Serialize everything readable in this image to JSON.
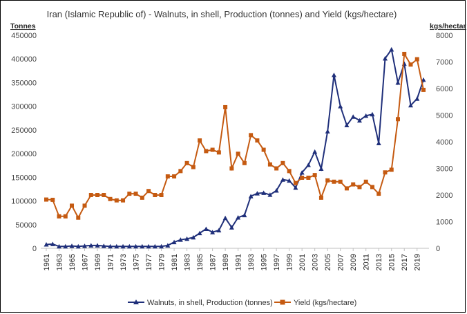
{
  "chart_data": {
    "type": "line",
    "title": "Iran (Islamic Republic of) -  Walnuts, in shell, Production (tonnes) and Yield (kgs/hectare)",
    "ylabel_left": "Tonnes",
    "ylabel_right": "kgs/hectare",
    "ylim_left": [
      0,
      450000
    ],
    "ylim_right": [
      0,
      8000
    ],
    "yticks_left": [
      "0",
      "50000",
      "100000",
      "150000",
      "200000",
      "250000",
      "300000",
      "350000",
      "400000",
      "450000"
    ],
    "yticks_right": [
      "0",
      "1000",
      "2000",
      "3000",
      "4000",
      "5000",
      "6000",
      "7000",
      "8000"
    ],
    "xlim": [
      1961,
      2020
    ],
    "xticks": [
      "1961",
      "1963",
      "1965",
      "1967",
      "1969",
      "1971",
      "1973",
      "1975",
      "1977",
      "1979",
      "1981",
      "1983",
      "1985",
      "1987",
      "1989",
      "1991",
      "1993",
      "1995",
      "1997",
      "1999",
      "2001",
      "2003",
      "2005",
      "2007",
      "2009",
      "2011",
      "2013",
      "2015",
      "2017",
      "2019"
    ],
    "legend_position": "bottom",
    "grid": false,
    "series": [
      {
        "name": "Walnuts, in shell, Production (tonnes)",
        "axis": "left",
        "color": "#1f2f7a",
        "marker": "triangle",
        "x": [
          1961,
          1962,
          1963,
          1964,
          1965,
          1966,
          1967,
          1968,
          1969,
          1970,
          1971,
          1972,
          1973,
          1974,
          1975,
          1976,
          1977,
          1978,
          1979,
          1980,
          1981,
          1982,
          1983,
          1984,
          1985,
          1986,
          1987,
          1988,
          1989,
          1990,
          1991,
          1992,
          1993,
          1994,
          1995,
          1996,
          1997,
          1998,
          1999,
          2000,
          2001,
          2002,
          2003,
          2004,
          2005,
          2006,
          2007,
          2008,
          2009,
          2010,
          2011,
          2012,
          2013,
          2014,
          2015,
          2016,
          2017,
          2018,
          2019,
          2020
        ],
        "values": [
          8000,
          9000,
          4000,
          4000,
          5000,
          4000,
          5000,
          6000,
          6000,
          5000,
          4000,
          4000,
          4000,
          4000,
          4000,
          4000,
          4000,
          4000,
          4000,
          6000,
          13000,
          18000,
          20000,
          23000,
          32000,
          41000,
          34000,
          38000,
          64000,
          44000,
          65000,
          70000,
          110000,
          116000,
          117000,
          113000,
          122000,
          145000,
          143000,
          128000,
          160000,
          176000,
          204000,
          168000,
          247000,
          366000,
          300000,
          260000,
          278000,
          270000,
          280000,
          283000,
          222000,
          401000,
          420000,
          350000,
          390000,
          302000,
          316000,
          356000
        ]
      },
      {
        "name": "Yield (kgs/hectare)",
        "axis": "right",
        "color": "#c55a11",
        "marker": "square",
        "x": [
          1961,
          1962,
          1963,
          1964,
          1965,
          1966,
          1967,
          1968,
          1969,
          1970,
          1971,
          1972,
          1973,
          1974,
          1975,
          1976,
          1977,
          1978,
          1979,
          1980,
          1981,
          1982,
          1983,
          1984,
          1985,
          1986,
          1987,
          1988,
          1989,
          1990,
          1991,
          1992,
          1993,
          1994,
          1995,
          1996,
          1997,
          1998,
          1999,
          2000,
          2001,
          2002,
          2003,
          2004,
          2005,
          2006,
          2007,
          2008,
          2009,
          2010,
          2011,
          2012,
          2013,
          2014,
          2015,
          2016,
          2017,
          2018,
          2019,
          2020
        ],
        "values": [
          1830,
          1820,
          1200,
          1200,
          1600,
          1150,
          1600,
          2000,
          2000,
          2000,
          1850,
          1800,
          1800,
          2050,
          2050,
          1900,
          2150,
          2000,
          2000,
          2700,
          2700,
          2900,
          3200,
          3050,
          4050,
          3650,
          3700,
          3600,
          5300,
          3000,
          3550,
          3200,
          4250,
          4050,
          3700,
          3150,
          3000,
          3200,
          2900,
          2450,
          2650,
          2650,
          2750,
          1900,
          2550,
          2500,
          2500,
          2250,
          2400,
          2300,
          2500,
          2300,
          2050,
          2850,
          2950,
          4850,
          7300,
          6900,
          7100,
          5950
        ]
      }
    ]
  }
}
